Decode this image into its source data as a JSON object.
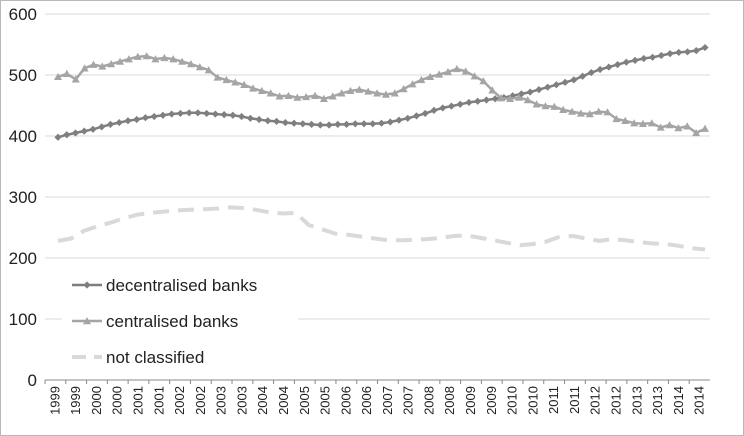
{
  "chart_data": {
    "type": "line",
    "title": "",
    "xlabel": "",
    "ylabel": "",
    "ylim": [
      0,
      600
    ],
    "yticks": [
      "0",
      "100",
      "200",
      "300",
      "400",
      "500",
      "600"
    ],
    "x_tick_labels": [
      "1999",
      "1999",
      "2000",
      "2000",
      "2001",
      "2001",
      "2002",
      "2002",
      "2003",
      "2003",
      "2004",
      "2004",
      "2005",
      "2005",
      "2006",
      "2006",
      "2007",
      "2007",
      "2008",
      "2008",
      "2009",
      "2009",
      "2010",
      "2010",
      "2011",
      "2011",
      "2012",
      "2012",
      "2013",
      "2013",
      "2014",
      "2014"
    ],
    "grid": "horizontal",
    "legend_position": "bottom-left",
    "series": [
      {
        "name": "decentralised banks",
        "color": "#7f7f7f",
        "marker": "diamond",
        "style": "solid",
        "values": [
          398,
          402,
          405,
          408,
          411,
          415,
          419,
          422,
          425,
          427,
          430,
          432,
          434,
          436,
          437,
          438,
          438,
          437,
          436,
          435,
          434,
          432,
          429,
          427,
          425,
          424,
          422,
          421,
          420,
          419,
          418,
          418,
          419,
          419,
          420,
          420,
          420,
          421,
          423,
          426,
          429,
          433,
          437,
          442,
          446,
          449,
          452,
          455,
          457,
          459,
          461,
          463,
          466,
          469,
          472,
          476,
          480,
          484,
          488,
          492,
          498,
          504,
          509,
          513,
          517,
          521,
          524,
          527,
          529,
          532,
          535,
          537,
          538,
          540,
          545
        ]
      },
      {
        "name": "centralised banks",
        "color": "#a5a5a5",
        "marker": "triangle",
        "style": "solid",
        "values": [
          497,
          502,
          493,
          511,
          517,
          514,
          518,
          522,
          526,
          530,
          531,
          526,
          528,
          526,
          522,
          518,
          513,
          508,
          496,
          492,
          488,
          484,
          478,
          474,
          470,
          465,
          466,
          463,
          464,
          466,
          461,
          465,
          470,
          474,
          476,
          473,
          470,
          468,
          470,
          477,
          485,
          492,
          497,
          501,
          505,
          510,
          506,
          498,
          490,
          475,
          462,
          461,
          463,
          459,
          452,
          449,
          448,
          443,
          440,
          437,
          436,
          440,
          439,
          428,
          425,
          421,
          420,
          421,
          414,
          418,
          413,
          416,
          405,
          412
        ]
      },
      {
        "name": "not classified",
        "color": "#d9d9d9",
        "marker": "none",
        "style": "dashed",
        "values": [
          228,
          232,
          245,
          252,
          258,
          265,
          271,
          274,
          276,
          278,
          279,
          280,
          281,
          283,
          282,
          279,
          275,
          273,
          274,
          254,
          247,
          240,
          238,
          235,
          232,
          229,
          229,
          230,
          231,
          233,
          236,
          237,
          233,
          229,
          225,
          221,
          223,
          227,
          235,
          236,
          232,
          228,
          231,
          229,
          226,
          224,
          223,
          220,
          216,
          214
        ]
      }
    ]
  }
}
